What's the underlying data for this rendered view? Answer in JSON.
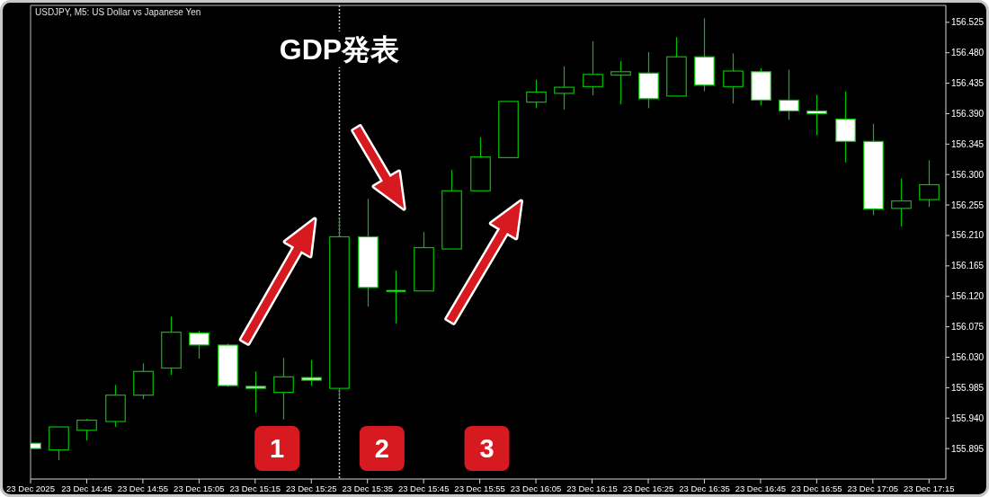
{
  "chart_data": {
    "type": "candlestick",
    "title": "USDJPY, M5: US Dollar vs Japanese Yen",
    "x": [
      "2025-12-23T14:35",
      "2025-12-23T14:40",
      "2025-12-23T14:45",
      "2025-12-23T14:50",
      "2025-12-23T14:55",
      "2025-12-23T15:00",
      "2025-12-23T15:05",
      "2025-12-23T15:10",
      "2025-12-23T15:15",
      "2025-12-23T15:20",
      "2025-12-23T15:25",
      "2025-12-23T15:30",
      "2025-12-23T15:35",
      "2025-12-23T15:40",
      "2025-12-23T15:45",
      "2025-12-23T15:50",
      "2025-12-23T15:55",
      "2025-12-23T16:00",
      "2025-12-23T16:05",
      "2025-12-23T16:10",
      "2025-12-23T16:15",
      "2025-12-23T16:20",
      "2025-12-23T16:25",
      "2025-12-23T16:30",
      "2025-12-23T16:35",
      "2025-12-23T16:40",
      "2025-12-23T16:45",
      "2025-12-23T16:50",
      "2025-12-23T16:55",
      "2025-12-23T17:00",
      "2025-12-23T17:05",
      "2025-12-23T17:10",
      "2025-12-23T17:15"
    ],
    "ohlc": [
      [
        155.903,
        155.903,
        155.895,
        155.895
      ],
      [
        155.893,
        155.927,
        155.878,
        155.927
      ],
      [
        155.922,
        155.939,
        155.907,
        155.937
      ],
      [
        155.935,
        155.989,
        155.927,
        155.974
      ],
      [
        155.974,
        156.021,
        155.968,
        156.009
      ],
      [
        156.014,
        156.09,
        156.004,
        156.067
      ],
      [
        156.066,
        156.069,
        156.028,
        156.048
      ],
      [
        156.048,
        156.05,
        155.986,
        155.988
      ],
      [
        155.987,
        156.009,
        155.948,
        155.984
      ],
      [
        155.978,
        156.029,
        155.938,
        156.001
      ],
      [
        156.0,
        156.026,
        155.988,
        155.996
      ],
      [
        155.984,
        156.236,
        155.969,
        156.208
      ],
      [
        156.208,
        156.264,
        156.105,
        156.133
      ],
      [
        156.128,
        156.158,
        156.08,
        156.128
      ],
      [
        156.128,
        156.215,
        156.128,
        156.192
      ],
      [
        156.19,
        156.307,
        156.19,
        156.276
      ],
      [
        156.276,
        156.355,
        156.276,
        156.326
      ],
      [
        156.325,
        156.408,
        156.325,
        156.408
      ],
      [
        156.407,
        156.44,
        156.398,
        156.422
      ],
      [
        156.42,
        156.46,
        156.396,
        156.429
      ],
      [
        156.43,
        156.497,
        156.417,
        156.448
      ],
      [
        156.447,
        156.468,
        156.404,
        156.452
      ],
      [
        156.45,
        156.481,
        156.398,
        156.412
      ],
      [
        156.416,
        156.503,
        156.416,
        156.474
      ],
      [
        156.474,
        156.531,
        156.423,
        156.432
      ],
      [
        156.43,
        156.479,
        156.405,
        156.453
      ],
      [
        156.452,
        156.457,
        156.402,
        156.41
      ],
      [
        156.41,
        156.455,
        156.381,
        156.394
      ],
      [
        156.394,
        156.418,
        156.358,
        156.39
      ],
      [
        156.382,
        156.423,
        156.318,
        156.349
      ],
      [
        156.349,
        156.375,
        156.24,
        156.249
      ],
      [
        156.25,
        156.294,
        156.223,
        156.261
      ],
      [
        156.263,
        156.321,
        156.252,
        156.285
      ]
    ],
    "color": "#00c000",
    "colors": [
      "#ffffff",
      "#000000",
      "#000000",
      "#000000",
      "#000000",
      "#000000",
      "#ffffff",
      "#ffffff",
      "#ffffff",
      "#000000",
      "#ffffff",
      "#000000",
      "#ffffff",
      "#00ff00",
      "#000000",
      "#000000",
      "#000000",
      "#000000",
      "#000000",
      "#000000",
      "#000000",
      "#000000",
      "#ffffff",
      "#000000",
      "#ffffff",
      "#000000",
      "#ffffff",
      "#ffffff",
      "#ffffff",
      "#ffffff",
      "#ffffff",
      "#000000",
      "#000000"
    ],
    "xlim": [
      "2025-12-23T14:35",
      "2025-12-23T17:18"
    ],
    "xticks": [
      {
        "value": "2025-12-23T14:35",
        "label": "23 Dec 2025"
      },
      {
        "value": "2025-12-23T14:45",
        "label": "23 Dec 14:45"
      },
      {
        "value": "2025-12-23T14:55",
        "label": "23 Dec 14:55"
      },
      {
        "value": "2025-12-23T15:05",
        "label": "23 Dec 15:05"
      },
      {
        "value": "2025-12-23T15:15",
        "label": "23 Dec 15:15"
      },
      {
        "value": "2025-12-23T15:25",
        "label": "23 Dec 15:25"
      },
      {
        "value": "2025-12-23T15:35",
        "label": "23 Dec 15:35"
      },
      {
        "value": "2025-12-23T15:45",
        "label": "23 Dec 15:45"
      },
      {
        "value": "2025-12-23T15:55",
        "label": "23 Dec 15:55"
      },
      {
        "value": "2025-12-23T16:05",
        "label": "23 Dec 16:05"
      },
      {
        "value": "2025-12-23T16:15",
        "label": "23 Dec 16:15"
      },
      {
        "value": "2025-12-23T16:25",
        "label": "23 Dec 16:25"
      },
      {
        "value": "2025-12-23T16:35",
        "label": "23 Dec 16:35"
      },
      {
        "value": "2025-12-23T16:45",
        "label": "23 Dec 16:45"
      },
      {
        "value": "2025-12-23T16:55",
        "label": "23 Dec 16:55"
      },
      {
        "value": "2025-12-23T17:05",
        "label": "23 Dec 17:05"
      },
      {
        "value": "2025-12-23T17:15",
        "label": "23 Dec 17:15"
      }
    ],
    "ylim": [
      155.85,
      156.55
    ],
    "yticks": [
      156.525,
      {
        "value": 156.48,
        "label": "156.480"
      },
      156.435,
      {
        "value": 156.39,
        "label": "156.390"
      },
      156.345,
      {
        "value": 156.3,
        "label": "156.300"
      },
      156.255,
      {
        "value": 156.21,
        "label": "156.210"
      },
      156.165,
      {
        "value": 156.12,
        "label": "156.120"
      },
      156.075,
      {
        "value": 156.03,
        "label": "156.030"
      },
      155.985,
      {
        "value": 155.94,
        "label": "155.940"
      },
      155.895
    ],
    "ref_lines": [
      {
        "axis": "x",
        "value": "2025-12-23T15:30",
        "label": "GDP発表",
        "color": "#c8c8c8",
        "line_style": "dotted"
      }
    ],
    "annotations": [
      "1",
      "2",
      "3"
    ]
  }
}
